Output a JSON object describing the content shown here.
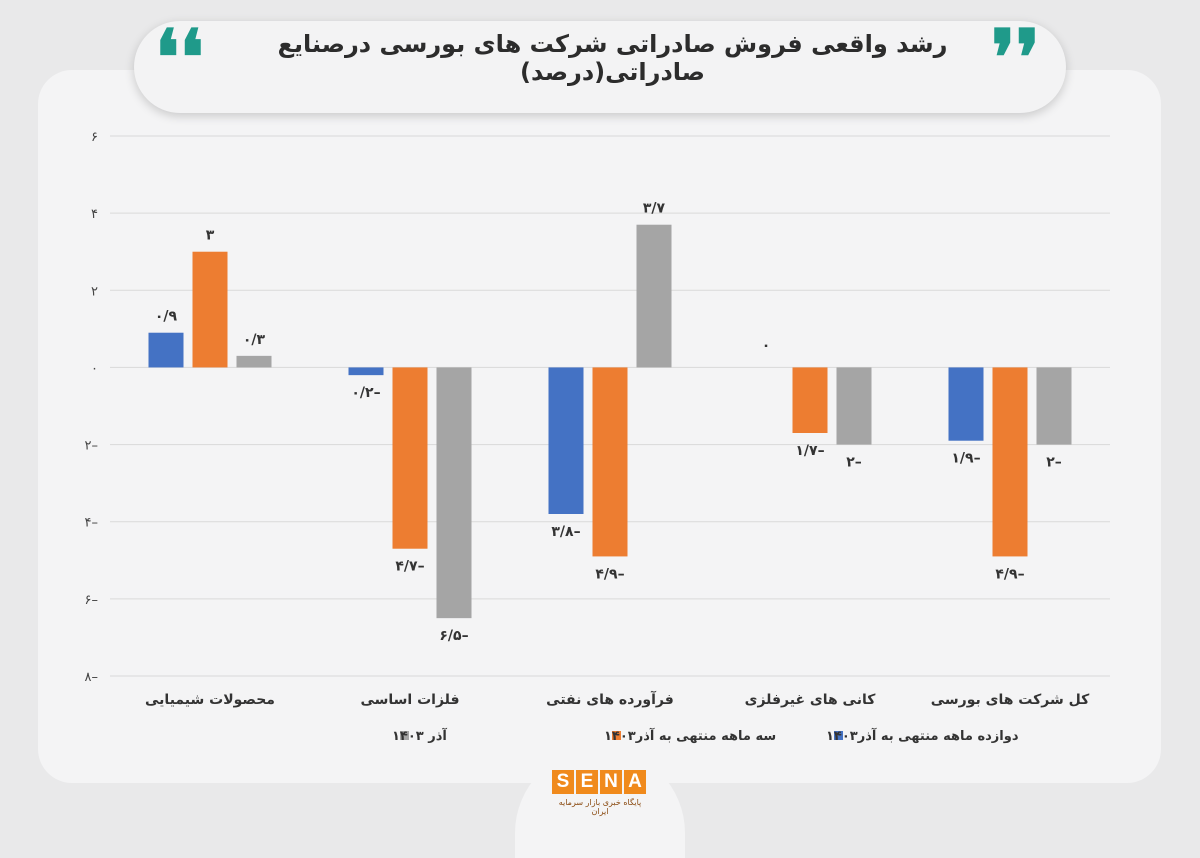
{
  "title": "رشد واقعی فروش صادراتی شرکت های بورسی درصنایع صادراتی(درصد)",
  "quote_left": "❛❛",
  "quote_right": "❜❜",
  "logo": {
    "letters": [
      "S",
      "E",
      "N",
      "A"
    ],
    "subtitle": "پایگاه خبری بازار سرمایه ایران",
    "color": "#f08a1c"
  },
  "chart_data": {
    "type": "bar",
    "ylim": [
      -8,
      6
    ],
    "yticks": [
      {
        "value": 6,
        "label": "۶"
      },
      {
        "value": 4,
        "label": "۴"
      },
      {
        "value": 2,
        "label": "۲"
      },
      {
        "value": 0,
        "label": "۰"
      },
      {
        "value": -2,
        "label": "۲–"
      },
      {
        "value": -4,
        "label": "۴–"
      },
      {
        "value": -6,
        "label": "۶–"
      },
      {
        "value": -8,
        "label": "۸–"
      }
    ],
    "grid": true,
    "legend_position": "bottom",
    "categories": [
      "محصولات شیمیایی",
      "فلزات اساسی",
      "فرآورده های نفتی",
      "کانی های غیرفلزی",
      "کل شرکت های بورسی"
    ],
    "series": [
      {
        "name": "دوازده ماهه منتهی به آذر۱۴۰۳",
        "color": "#4472c4",
        "values": [
          0.9,
          -0.2,
          -3.8,
          0,
          -1.9
        ],
        "labels": [
          "۰/۹",
          "۰/۲–",
          "۳/۸–",
          "۰",
          "۱/۹–"
        ]
      },
      {
        "name": "سه ماهه منتهی به آذر۱۴۰۳",
        "color": "#ed7d31",
        "values": [
          3,
          -4.7,
          -4.9,
          -1.7,
          -4.9
        ],
        "labels": [
          "۳",
          "۴/۷–",
          "۴/۹–",
          "۱/۷–",
          "۴/۹–"
        ]
      },
      {
        "name": "آذر ۱۴۰۳",
        "color": "#a5a5a5",
        "values": [
          0.3,
          -6.5,
          3.7,
          -2,
          -2
        ],
        "labels": [
          "۰/۳",
          "۶/۵–",
          "۳/۷",
          "۲–",
          "۲–"
        ]
      }
    ]
  }
}
